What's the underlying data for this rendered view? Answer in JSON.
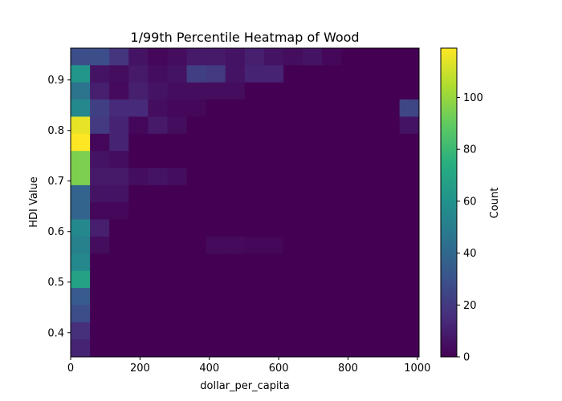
{
  "chart_data": {
    "type": "heatmap",
    "title": "1/99th Percentile Heatmap of Wood",
    "xlabel": "dollar_per_capita",
    "ylabel": "HDI Value",
    "colorbar_label": "Count",
    "colormap": "viridis",
    "xlim": [
      0,
      1005
    ],
    "ylim": [
      0.352,
      0.963
    ],
    "x_ticks": [
      0,
      200,
      400,
      600,
      800,
      1000
    ],
    "y_ticks": [
      0.4,
      0.5,
      0.6,
      0.7,
      0.8,
      0.9
    ],
    "colorbar_ticks": [
      0,
      20,
      40,
      60,
      80,
      100
    ],
    "value_range": [
      0,
      119
    ],
    "grid": false,
    "x_bins": 18,
    "y_bins": 18,
    "x_bin_width": 55.8,
    "y_bin_width": 0.0339,
    "rows_top_to_bottom": [
      [
        28,
        28,
        18,
        6,
        2,
        4,
        8,
        8,
        6,
        10,
        6,
        4,
        6,
        2,
        0,
        0,
        0,
        0
      ],
      [
        62,
        6,
        4,
        8,
        4,
        6,
        22,
        20,
        6,
        12,
        12,
        0,
        0,
        0,
        0,
        0,
        0,
        0
      ],
      [
        45,
        10,
        3,
        10,
        6,
        4,
        4,
        4,
        4,
        0,
        0,
        0,
        0,
        0,
        0,
        0,
        0,
        0
      ],
      [
        55,
        22,
        14,
        14,
        4,
        2,
        2,
        0,
        0,
        0,
        0,
        0,
        0,
        0,
        0,
        0,
        0,
        25
      ],
      [
        115,
        20,
        12,
        2,
        8,
        4,
        0,
        0,
        0,
        0,
        0,
        0,
        0,
        0,
        0,
        0,
        0,
        6
      ],
      [
        119,
        2,
        12,
        0,
        0,
        0,
        0,
        0,
        0,
        0,
        0,
        0,
        0,
        0,
        0,
        0,
        0,
        0
      ],
      [
        95,
        6,
        4,
        0,
        0,
        0,
        0,
        0,
        0,
        0,
        0,
        0,
        0,
        0,
        0,
        0,
        0,
        0
      ],
      [
        95,
        8,
        8,
        4,
        6,
        4,
        0,
        0,
        0,
        0,
        0,
        0,
        0,
        0,
        0,
        0,
        0,
        0
      ],
      [
        38,
        6,
        6,
        0,
        0,
        0,
        0,
        0,
        0,
        0,
        0,
        0,
        0,
        0,
        0,
        0,
        0,
        0
      ],
      [
        38,
        2,
        2,
        0,
        0,
        0,
        0,
        0,
        0,
        0,
        0,
        0,
        0,
        0,
        0,
        0,
        0,
        0
      ],
      [
        55,
        10,
        0,
        0,
        0,
        0,
        0,
        0,
        0,
        0,
        0,
        0,
        0,
        0,
        0,
        0,
        0,
        0
      ],
      [
        52,
        4,
        0,
        0,
        0,
        0,
        0,
        3,
        3,
        2,
        2,
        0,
        0,
        0,
        0,
        0,
        0,
        0
      ],
      [
        55,
        0,
        0,
        0,
        0,
        0,
        0,
        0,
        0,
        0,
        0,
        0,
        0,
        0,
        0,
        0,
        0,
        0
      ],
      [
        68,
        0,
        0,
        0,
        0,
        0,
        0,
        0,
        0,
        0,
        0,
        0,
        0,
        0,
        0,
        0,
        0,
        0
      ],
      [
        34,
        0,
        0,
        0,
        0,
        0,
        0,
        0,
        0,
        0,
        0,
        0,
        0,
        0,
        0,
        0,
        0,
        0
      ],
      [
        28,
        0,
        0,
        0,
        0,
        0,
        0,
        0,
        0,
        0,
        0,
        0,
        0,
        0,
        0,
        0,
        0,
        0
      ],
      [
        16,
        0,
        0,
        0,
        0,
        0,
        0,
        0,
        0,
        0,
        0,
        0,
        0,
        0,
        0,
        0,
        0,
        0
      ],
      [
        12,
        0,
        0,
        0,
        0,
        0,
        0,
        0,
        0,
        0,
        0,
        0,
        0,
        0,
        0,
        0,
        0,
        0
      ]
    ]
  }
}
